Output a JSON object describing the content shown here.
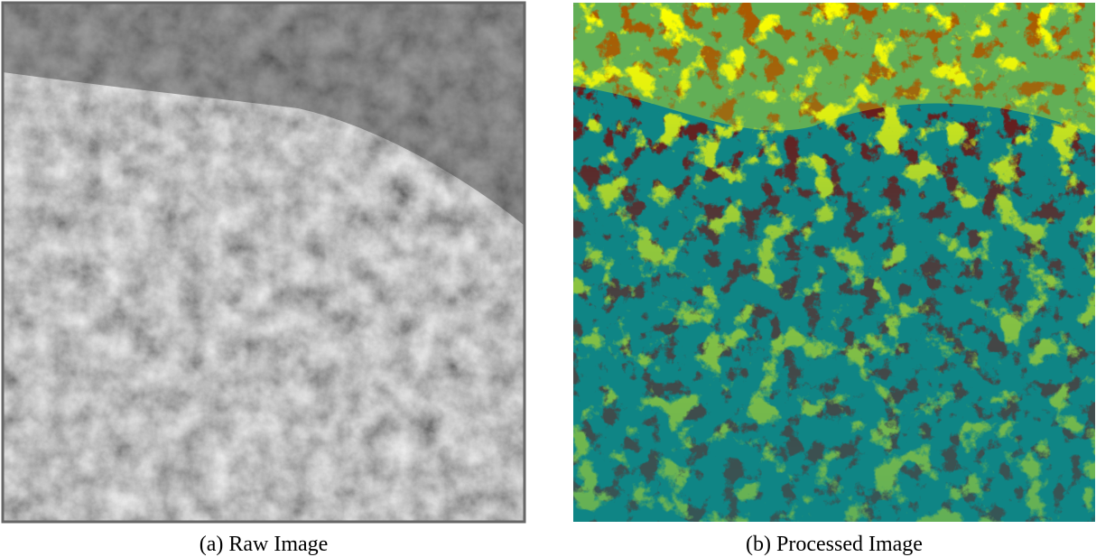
{
  "figure": {
    "panels": [
      {
        "caption": "(a) Raw Image"
      },
      {
        "caption": "(b) Processed Image"
      }
    ]
  }
}
